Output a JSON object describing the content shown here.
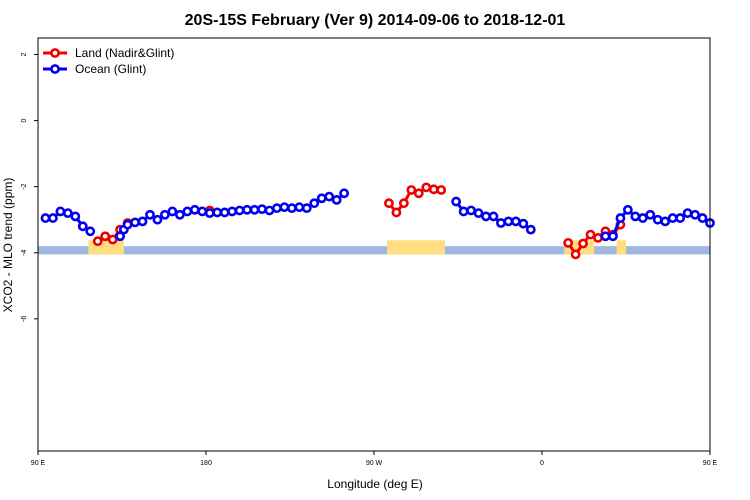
{
  "chart_data": {
    "type": "line",
    "title": "20S-15S February (Ver 9)   2014-09-06 to 2018-12-01",
    "xlabel": "Longitude (deg E)",
    "ylabel": "XCO2 - MLO trend (ppm)",
    "xlim": [
      90,
      450
    ],
    "ylim": [
      -10,
      2.5
    ],
    "x_ticks": [
      {
        "value": 90,
        "label": "90 E"
      },
      {
        "value": 180,
        "label": "180"
      },
      {
        "value": 270,
        "label": "90 W"
      },
      {
        "value": 360,
        "label": "0"
      },
      {
        "value": 450,
        "label": "90 E"
      },
      {
        "value": 540,
        "label": "180"
      }
    ],
    "y_ticks": [
      {
        "value": 2,
        "label": "2"
      },
      {
        "value": 0,
        "label": "0"
      },
      {
        "value": -2,
        "label": "-2"
      },
      {
        "value": -4,
        "label": "-4"
      },
      {
        "value": -6,
        "label": "-6"
      }
    ],
    "legend_position": "top-left",
    "series": [
      {
        "name": "Land (Nadir&Glint)",
        "color": "#ee0000",
        "segments": [
          [
            [
              122,
              -3.65
            ],
            [
              126,
              -3.5
            ],
            [
              130,
              -3.6
            ],
            [
              134,
              -3.3
            ],
            [
              138,
              -3.1
            ]
          ],
          [
            [
              182,
              -2.72
            ]
          ],
          [
            [
              278,
              -2.5
            ],
            [
              282,
              -2.78
            ],
            [
              286,
              -2.5
            ],
            [
              290,
              -2.1
            ],
            [
              294,
              -2.2
            ],
            [
              298,
              -2.02
            ],
            [
              302,
              -2.08
            ],
            [
              306,
              -2.1
            ]
          ],
          [
            [
              374,
              -3.7
            ],
            [
              378,
              -4.05
            ],
            [
              382,
              -3.72
            ],
            [
              386,
              -3.45
            ],
            [
              390,
              -3.55
            ],
            [
              394,
              -3.35
            ]
          ],
          [
            [
              398,
              -3.45
            ],
            [
              402,
              -3.15
            ]
          ],
          [
            [
              482,
              -3.68
            ],
            [
              486,
              -3.5
            ],
            [
              490,
              -3.6
            ],
            [
              494,
              -3.35
            ],
            [
              498,
              -3.1
            ]
          ]
        ]
      },
      {
        "name": "Ocean (Glint)",
        "color": "#0000ee",
        "segments": [
          [
            [
              94,
              -2.95
            ],
            [
              98,
              -2.95
            ],
            [
              102,
              -2.75
            ],
            [
              106,
              -2.8
            ],
            [
              110,
              -2.9
            ],
            [
              114,
              -3.2
            ],
            [
              118,
              -3.35
            ]
          ],
          [
            [
              134,
              -3.5
            ],
            [
              136,
              -3.3
            ],
            [
              138,
              -3.15
            ],
            [
              142,
              -3.08
            ],
            [
              146,
              -3.05
            ],
            [
              150,
              -2.85
            ],
            [
              154,
              -3.0
            ],
            [
              158,
              -2.85
            ],
            [
              162,
              -2.75
            ],
            [
              166,
              -2.85
            ],
            [
              170,
              -2.75
            ],
            [
              174,
              -2.7
            ],
            [
              178,
              -2.75
            ],
            [
              182,
              -2.8
            ],
            [
              186,
              -2.78
            ],
            [
              190,
              -2.78
            ],
            [
              194,
              -2.75
            ],
            [
              198,
              -2.72
            ],
            [
              202,
              -2.7
            ],
            [
              206,
              -2.7
            ],
            [
              210,
              -2.68
            ],
            [
              214,
              -2.72
            ],
            [
              218,
              -2.65
            ],
            [
              222,
              -2.62
            ],
            [
              226,
              -2.65
            ],
            [
              230,
              -2.62
            ],
            [
              234,
              -2.65
            ],
            [
              238,
              -2.5
            ],
            [
              242,
              -2.35
            ],
            [
              246,
              -2.3
            ],
            [
              250,
              -2.4
            ],
            [
              254,
              -2.2
            ]
          ],
          [
            [
              314,
              -2.45
            ],
            [
              318,
              -2.75
            ],
            [
              322,
              -2.72
            ],
            [
              326,
              -2.8
            ],
            [
              330,
              -2.9
            ],
            [
              334,
              -2.9
            ],
            [
              338,
              -3.1
            ],
            [
              342,
              -3.05
            ],
            [
              346,
              -3.05
            ],
            [
              350,
              -3.12
            ],
            [
              354,
              -3.3
            ]
          ],
          [
            [
              394,
              -3.5
            ],
            [
              398,
              -3.5
            ],
            [
              402,
              -2.95
            ],
            [
              406,
              -2.7
            ],
            [
              410,
              -2.9
            ],
            [
              414,
              -2.95
            ],
            [
              418,
              -2.85
            ],
            [
              422,
              -3.0
            ],
            [
              426,
              -3.05
            ],
            [
              430,
              -2.95
            ],
            [
              434,
              -2.95
            ],
            [
              438,
              -2.8
            ],
            [
              442,
              -2.85
            ],
            [
              446,
              -2.95
            ],
            [
              450,
              -3.1
            ]
          ]
        ]
      }
    ],
    "land_mask_color": "#ffdd80",
    "ocean_mask_color": "#a0b8e0",
    "land_spans": [
      [
        117,
        136
      ],
      [
        277,
        308
      ],
      [
        372,
        388
      ],
      [
        400,
        405
      ],
      [
        480,
        502
      ]
    ]
  }
}
